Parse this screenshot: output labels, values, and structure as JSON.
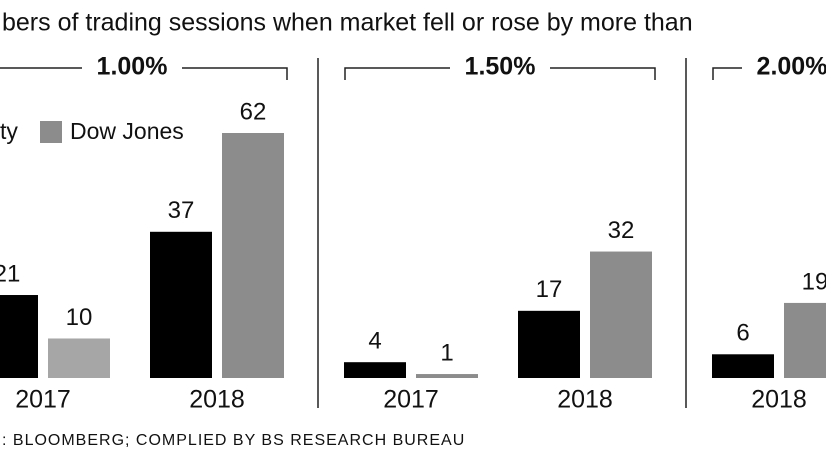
{
  "chart_data": {
    "type": "bar",
    "title": "bers of trading sessions when market fell or rose by more than",
    "source": ": BLOOMBERG; COMPLIED BY BS RESEARCH BUREAU",
    "series": [
      {
        "name": "ty",
        "color": "#000000"
      },
      {
        "name": "Dow Jones",
        "color": "#8c8c8c"
      }
    ],
    "panels": [
      {
        "title": "1.00%",
        "categories": [
          "2017",
          "2018"
        ],
        "values": [
          [
            21,
            37
          ],
          [
            10,
            62
          ]
        ]
      },
      {
        "title": "1.50%",
        "categories": [
          "2017",
          "2018"
        ],
        "values": [
          [
            4,
            17
          ],
          [
            1,
            32
          ]
        ]
      },
      {
        "title": "2.00%",
        "categories": [
          "2018"
        ],
        "values": [
          [
            6
          ],
          [
            19
          ]
        ]
      }
    ],
    "ylim": [
      0,
      62
    ]
  }
}
